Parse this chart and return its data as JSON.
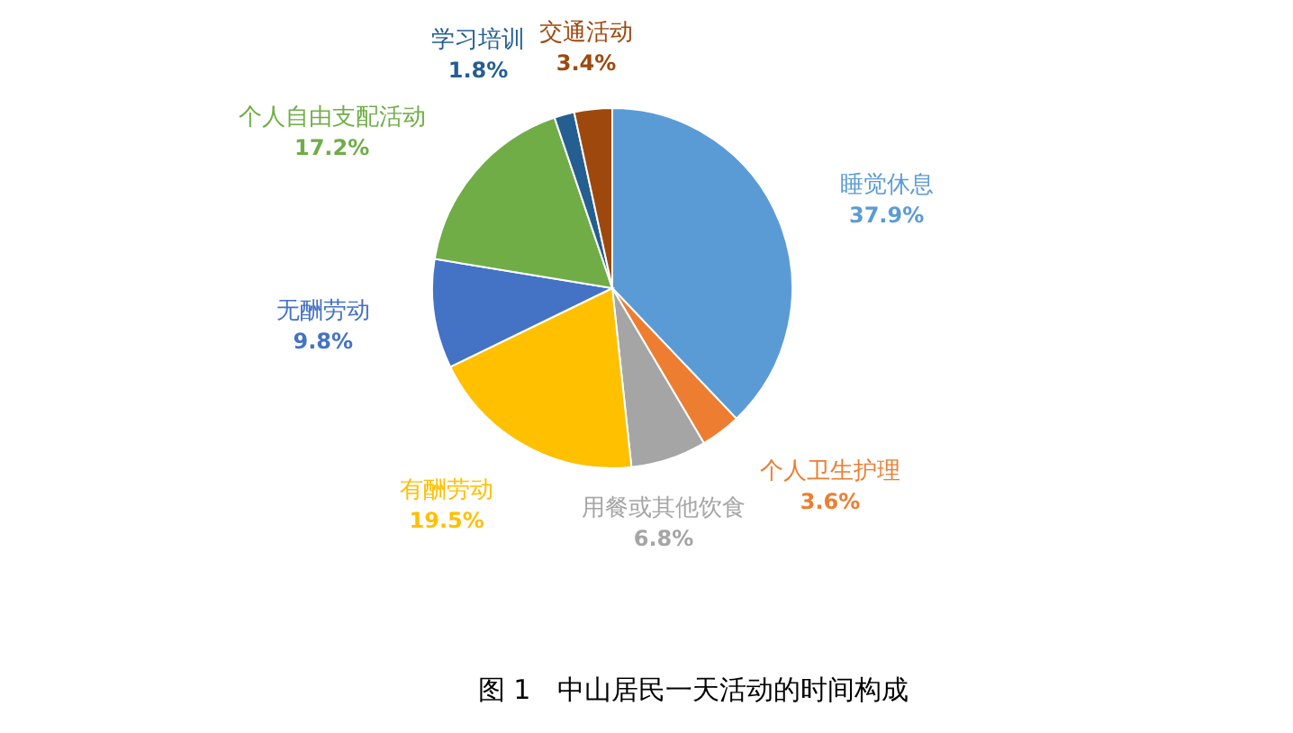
{
  "chart_data": {
    "type": "pie",
    "title": "图 1　中山居民一天活动的时间构成",
    "categories": [
      "睡觉休息",
      "个人卫生护理",
      "用餐或其他饮食",
      "有酬劳动",
      "无酬劳动",
      "个人自由支配活动",
      "学习培训",
      "交通活动"
    ],
    "values": [
      37.9,
      3.6,
      6.8,
      19.5,
      9.8,
      17.2,
      1.8,
      3.4
    ],
    "colors": [
      "#5b9bd5",
      "#ed7d31",
      "#a5a5a5",
      "#ffc000",
      "#4472c4",
      "#70ad47",
      "#255e91",
      "#9e480e"
    ],
    "value_labels": [
      "37.9%",
      "3.6%",
      "6.8%",
      "19.5%",
      "9.8%",
      "17.2%",
      "1.8%",
      "3.4%"
    ]
  }
}
